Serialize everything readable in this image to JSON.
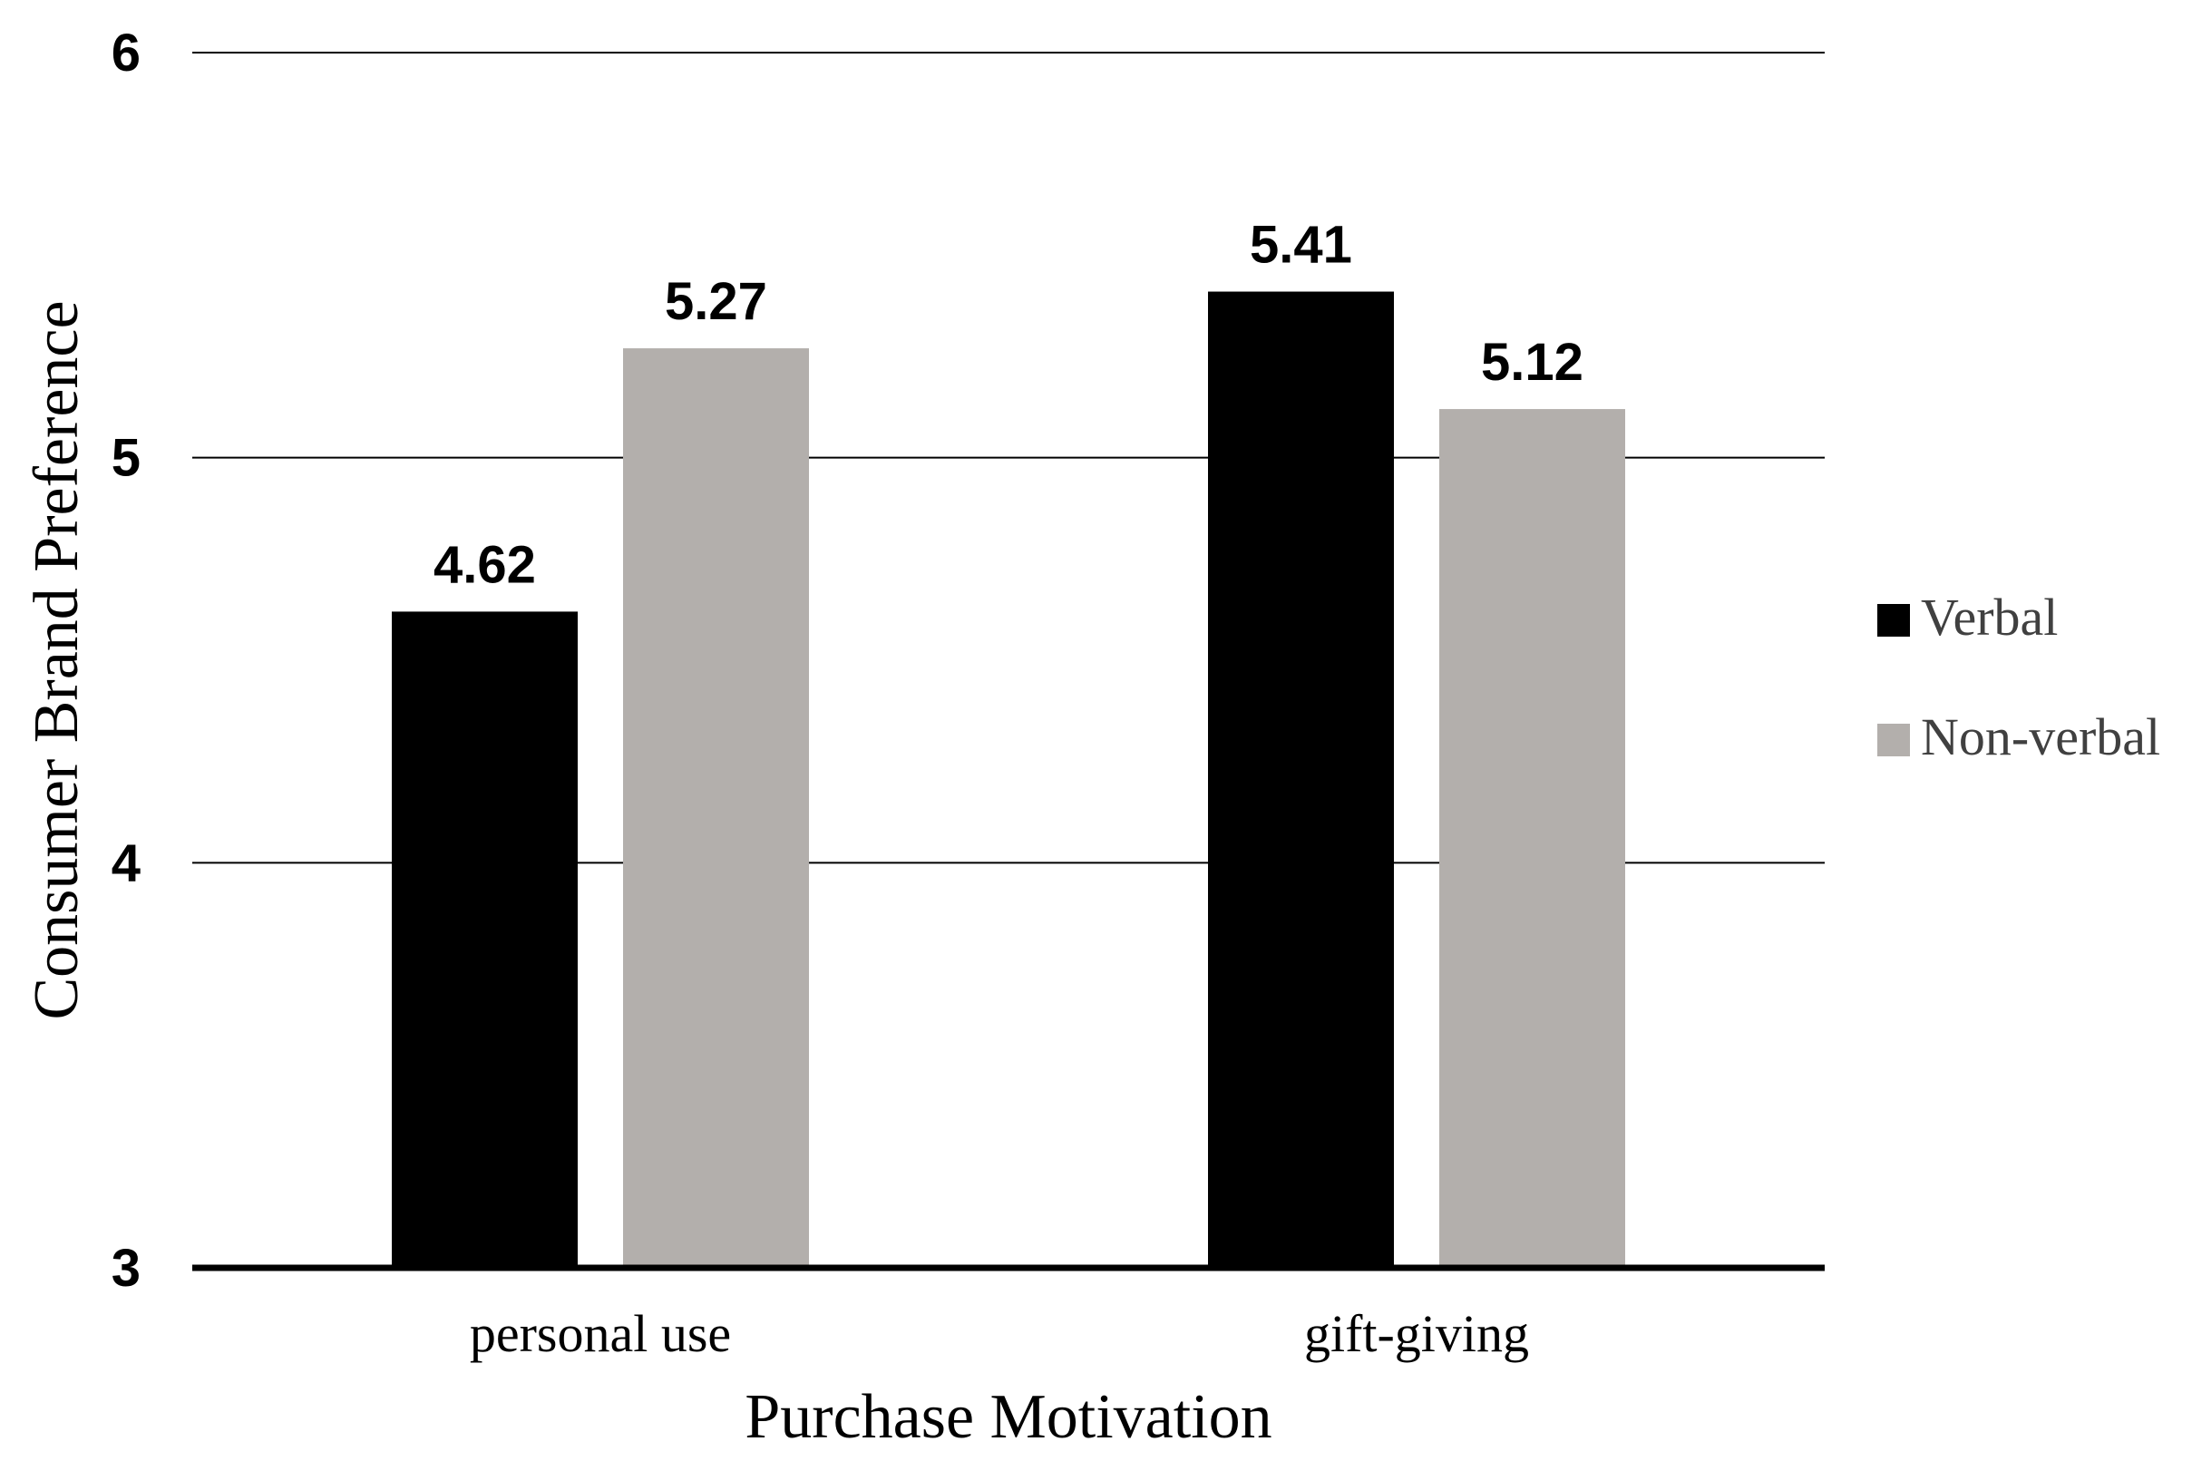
{
  "chart_data": {
    "type": "bar",
    "categories": [
      "personal use",
      "gift-giving"
    ],
    "series": [
      {
        "name": "Verbal",
        "values": [
          4.62,
          5.41
        ],
        "color": "#000000"
      },
      {
        "name": "Non-verbal",
        "values": [
          5.27,
          5.12
        ],
        "color": "#b3afac"
      }
    ],
    "xlabel": "Purchase Motivation",
    "ylabel": "Consumer Brand Preference",
    "ylim": [
      3,
      6
    ],
    "yticks": [
      3,
      4,
      5,
      6
    ],
    "grid": true,
    "legend_position": "right"
  }
}
